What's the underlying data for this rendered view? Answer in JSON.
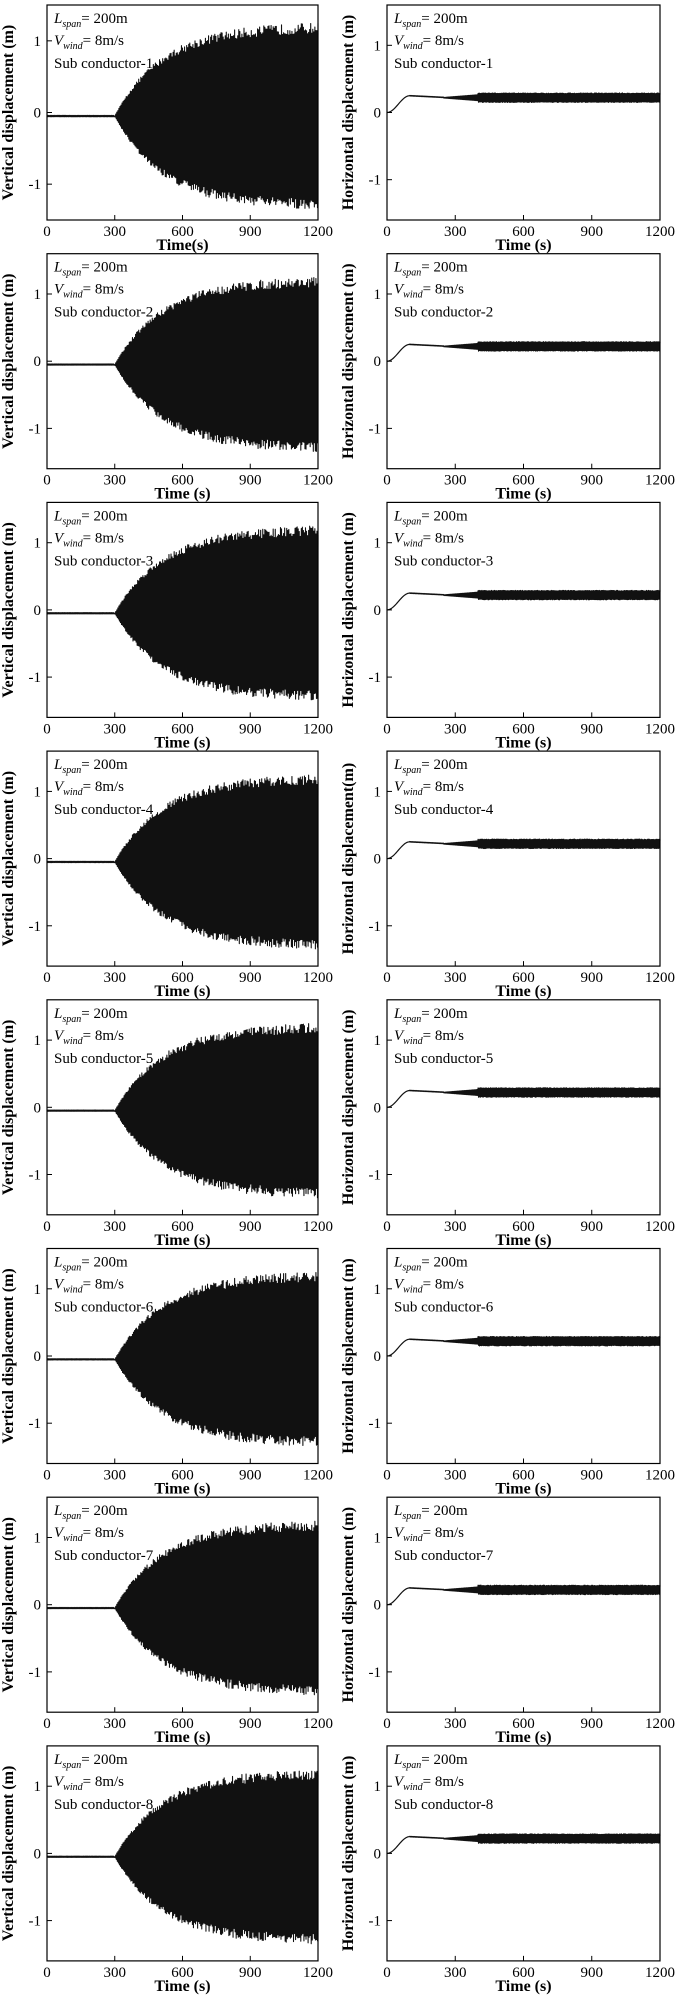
{
  "annotation": {
    "l_symbol": "L",
    "l_subscript": "span",
    "l_value": "= 200m",
    "v_symbol": "V",
    "v_subscript": "wind",
    "v_value": "= 8m/s"
  },
  "colors": {
    "signal": "#111111",
    "axis": "#000000",
    "background": "#ffffff"
  },
  "chart_data": [
    {
      "id": "v1",
      "type": "line",
      "label": "Sub conductor-1",
      "xlabel": "Time(s)",
      "ylabel": "Vertical displacement (m)",
      "xlim": [
        0,
        1200
      ],
      "ylim": [
        -1.5,
        1.5
      ],
      "xticks": [
        0,
        300,
        600,
        900,
        1200
      ],
      "yticks": [
        -1,
        0,
        1
      ],
      "baseline": -0.05,
      "onset_time": 300,
      "amplitude_max": 1.3,
      "grid": false
    },
    {
      "id": "h1",
      "type": "line",
      "label": "Sub conductor-1",
      "xlabel": "Time (s)",
      "ylabel": "Horizontal displacement (m)",
      "xlim": [
        0,
        1200
      ],
      "ylim": [
        -1.6,
        1.6
      ],
      "xticks": [
        0,
        300,
        600,
        900,
        1200
      ],
      "yticks": [
        -1,
        0,
        1
      ],
      "initial_value": 0,
      "plateau_value": 0.25,
      "plateau_time": 100,
      "mean_oscillation": 0.2,
      "band_halfwidth": 0.07,
      "band_onset_time": 400,
      "grid": false
    },
    {
      "id": "v2",
      "type": "line",
      "label": "Sub conductor-2",
      "xlabel": "Time (s)",
      "ylabel": "Vertical displacement (m)",
      "xlim": [
        0,
        1200
      ],
      "ylim": [
        -1.6,
        1.6
      ],
      "xticks": [
        0,
        300,
        600,
        900,
        1200
      ],
      "yticks": [
        -1,
        0,
        1
      ],
      "baseline": -0.05,
      "onset_time": 300,
      "amplitude_max": 1.3,
      "grid": false
    },
    {
      "id": "h2",
      "type": "line",
      "label": "Sub conductor-2",
      "xlabel": "Time (s)",
      "ylabel": "Horizontal displacement (m)",
      "xlim": [
        0,
        1200
      ],
      "ylim": [
        -1.6,
        1.6
      ],
      "xticks": [
        0,
        300,
        600,
        900,
        1200
      ],
      "yticks": [
        -1,
        0,
        1
      ],
      "initial_value": 0,
      "plateau_value": 0.25,
      "plateau_time": 100,
      "mean_oscillation": 0.2,
      "band_halfwidth": 0.07,
      "band_onset_time": 400,
      "grid": false
    },
    {
      "id": "v3",
      "type": "line",
      "label": "Sub conductor-3",
      "xlabel": "Time (s)",
      "ylabel": "Vertical displacement (m)",
      "xlim": [
        0,
        1200
      ],
      "ylim": [
        -1.6,
        1.6
      ],
      "xticks": [
        0,
        300,
        600,
        900,
        1200
      ],
      "yticks": [
        -1,
        0,
        1
      ],
      "baseline": -0.05,
      "onset_time": 300,
      "amplitude_max": 1.3,
      "grid": false
    },
    {
      "id": "h3",
      "type": "line",
      "label": "Sub conductor-3",
      "xlabel": "Time (s)",
      "ylabel": "Horizontal displacement (m)",
      "xlim": [
        0,
        1200
      ],
      "ylim": [
        -1.6,
        1.6
      ],
      "xticks": [
        0,
        300,
        600,
        900,
        1200
      ],
      "yticks": [
        -1,
        0,
        1
      ],
      "initial_value": 0,
      "plateau_value": 0.25,
      "plateau_time": 100,
      "mean_oscillation": 0.2,
      "band_halfwidth": 0.07,
      "band_onset_time": 400,
      "grid": false
    },
    {
      "id": "v4",
      "type": "line",
      "label": "Sub conductor-4",
      "xlabel": "Time (s)",
      "ylabel": "Vertical displacement (m)",
      "xlim": [
        0,
        1200
      ],
      "ylim": [
        -1.6,
        1.6
      ],
      "xticks": [
        0,
        300,
        600,
        900,
        1200
      ],
      "yticks": [
        -1,
        0,
        1
      ],
      "baseline": -0.05,
      "onset_time": 300,
      "amplitude_max": 1.3,
      "grid": false
    },
    {
      "id": "h4",
      "type": "line",
      "label": "Sub conductor-4",
      "xlabel": "Time (s)",
      "ylabel": "Horizontal displacement(m)",
      "xlim": [
        0,
        1200
      ],
      "ylim": [
        -1.6,
        1.6
      ],
      "xticks": [
        0,
        300,
        600,
        900,
        1200
      ],
      "yticks": [
        -1,
        0,
        1
      ],
      "initial_value": 0,
      "plateau_value": 0.25,
      "plateau_time": 100,
      "mean_oscillation": 0.2,
      "band_halfwidth": 0.07,
      "band_onset_time": 400,
      "grid": false
    },
    {
      "id": "v5",
      "type": "line",
      "label": "Sub conductor-5",
      "xlabel": "Time (s)",
      "ylabel": "Vertical displacement (m)",
      "xlim": [
        0,
        1200
      ],
      "ylim": [
        -1.6,
        1.6
      ],
      "xticks": [
        0,
        300,
        600,
        900,
        1200
      ],
      "yticks": [
        -1,
        0,
        1
      ],
      "baseline": -0.05,
      "onset_time": 300,
      "amplitude_max": 1.3,
      "grid": false
    },
    {
      "id": "h5",
      "type": "line",
      "label": "Sub conductor-5",
      "xlabel": "Time (s)",
      "ylabel": "Horizontal displacement (m)",
      "xlim": [
        0,
        1200
      ],
      "ylim": [
        -1.6,
        1.6
      ],
      "xticks": [
        0,
        300,
        600,
        900,
        1200
      ],
      "yticks": [
        -1,
        0,
        1
      ],
      "initial_value": 0,
      "plateau_value": 0.25,
      "plateau_time": 100,
      "mean_oscillation": 0.2,
      "band_halfwidth": 0.07,
      "band_onset_time": 400,
      "grid": false
    },
    {
      "id": "v6",
      "type": "line",
      "label": "Sub conductor-6",
      "xlabel": "Time (s)",
      "ylabel": "Vertical displacement (m)",
      "xlim": [
        0,
        1200
      ],
      "ylim": [
        -1.6,
        1.6
      ],
      "xticks": [
        0,
        300,
        600,
        900,
        1200
      ],
      "yticks": [
        -1,
        0,
        1
      ],
      "baseline": -0.05,
      "onset_time": 300,
      "amplitude_max": 1.3,
      "grid": false
    },
    {
      "id": "h6",
      "type": "line",
      "label": "Sub conductor-6",
      "xlabel": "Time (s)",
      "ylabel": "Horizontal displacement (m)",
      "xlim": [
        0,
        1200
      ],
      "ylim": [
        -1.6,
        1.6
      ],
      "xticks": [
        0,
        300,
        600,
        900,
        1200
      ],
      "yticks": [
        -1,
        0,
        1
      ],
      "initial_value": 0,
      "plateau_value": 0.25,
      "plateau_time": 100,
      "mean_oscillation": 0.2,
      "band_halfwidth": 0.07,
      "band_onset_time": 400,
      "grid": false
    },
    {
      "id": "v7",
      "type": "line",
      "label": "Sub conductor-7",
      "xlabel": "Time (s)",
      "ylabel": "Vertical displacement (m)",
      "xlim": [
        0,
        1200
      ],
      "ylim": [
        -1.6,
        1.6
      ],
      "xticks": [
        0,
        300,
        600,
        900,
        1200
      ],
      "yticks": [
        -1,
        0,
        1
      ],
      "baseline": -0.05,
      "onset_time": 300,
      "amplitude_max": 1.3,
      "grid": false
    },
    {
      "id": "h7",
      "type": "line",
      "label": "Sub conductor-7",
      "xlabel": "Time (s)",
      "ylabel": "Horizontal displacement (m)",
      "xlim": [
        0,
        1200
      ],
      "ylim": [
        -1.6,
        1.6
      ],
      "xticks": [
        0,
        300,
        600,
        900,
        1200
      ],
      "yticks": [
        -1,
        0,
        1
      ],
      "initial_value": 0,
      "plateau_value": 0.25,
      "plateau_time": 100,
      "mean_oscillation": 0.2,
      "band_halfwidth": 0.07,
      "band_onset_time": 400,
      "grid": false
    },
    {
      "id": "v8",
      "type": "line",
      "label": "Sub conductor-8",
      "xlabel": "Time (s)",
      "ylabel": "Vertical displacement (m)",
      "xlim": [
        0,
        1200
      ],
      "ylim": [
        -1.6,
        1.6
      ],
      "xticks": [
        0,
        300,
        600,
        900,
        1200
      ],
      "yticks": [
        -1,
        0,
        1
      ],
      "baseline": -0.05,
      "onset_time": 300,
      "amplitude_max": 1.3,
      "grid": false
    },
    {
      "id": "h8",
      "type": "line",
      "label": "Sub conductor-8",
      "xlabel": "Time (s)",
      "ylabel": "Horizontal displacement (m)",
      "xlim": [
        0,
        1200
      ],
      "ylim": [
        -1.6,
        1.6
      ],
      "xticks": [
        0,
        300,
        600,
        900,
        1200
      ],
      "yticks": [
        -1,
        0,
        1
      ],
      "initial_value": 0,
      "plateau_value": 0.25,
      "plateau_time": 100,
      "mean_oscillation": 0.2,
      "band_halfwidth": 0.07,
      "band_onset_time": 400,
      "grid": false
    }
  ]
}
